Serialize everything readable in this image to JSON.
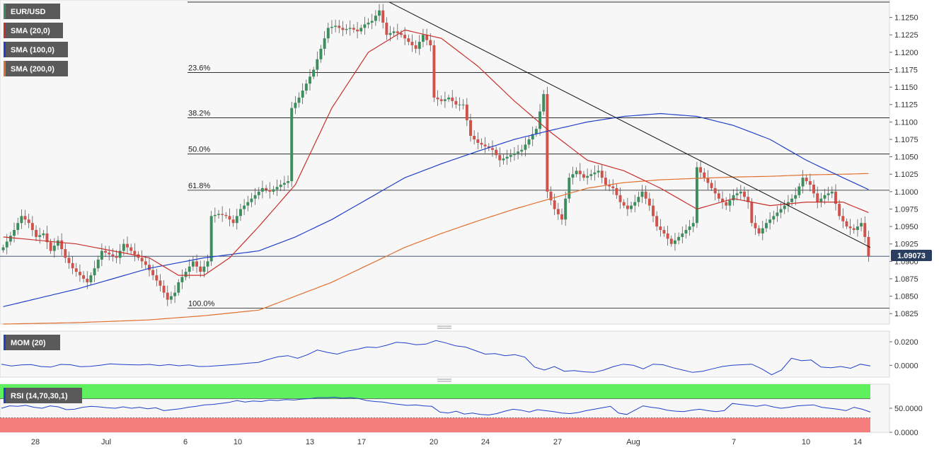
{
  "colors": {
    "up": "#3a8f5c",
    "down": "#d0524a",
    "sma20": "#c8302b",
    "sma100": "#2040c8",
    "sma200": "#e07030",
    "momentum": "#2040c8",
    "rsi": "#2040c8",
    "rsi_overbought": "#5ef05e",
    "rsi_oversold": "#f47d7d",
    "current_price": "#2a3f60"
  },
  "main_legend": [
    {
      "label": "EUR/USD",
      "color": "#3a8f5c"
    },
    {
      "label": "SMA (20,0)",
      "color": "#c8302b"
    },
    {
      "label": "SMA (100,0)",
      "color": "#2040c8"
    },
    {
      "label": "SMA (200,0)",
      "color": "#e07030"
    }
  ],
  "current_price_label": "1.09073",
  "chart_data": [
    {
      "type": "candlestick",
      "title": "EUR/USD",
      "ylim": [
        1.081,
        1.1275
      ],
      "y_ticks": [
        "1.0825",
        "1.0850",
        "1.0875",
        "1.0900",
        "1.0925",
        "1.0950",
        "1.0975",
        "1.1000",
        "1.1025",
        "1.1050",
        "1.1075",
        "1.1100",
        "1.1125",
        "1.1150",
        "1.1175",
        "1.1200",
        "1.1225",
        "1.1250"
      ],
      "x_ticks": [
        "28",
        "Jul",
        "6",
        "10",
        "13",
        "17",
        "20",
        "24",
        "27",
        "Aug",
        "7",
        "10",
        "14"
      ],
      "current_price": 1.09073,
      "fibonacci": [
        {
          "label": "23.6%",
          "value": 1.1171
        },
        {
          "label": "38.2%",
          "value": 1.1106
        },
        {
          "label": "50.0%",
          "value": 1.1054
        },
        {
          "label": "61.8%",
          "value": 1.1002
        },
        {
          "label": "100.0%",
          "value": 1.0833
        }
      ],
      "high_line": 1.1272,
      "trendline": [
        1.1272,
        1.092
      ],
      "close_anchors": [
        [
          0,
          1.092
        ],
        [
          3,
          1.0945
        ],
        [
          5,
          1.0965
        ],
        [
          7,
          1.0955
        ],
        [
          9,
          1.0935
        ],
        [
          11,
          1.094
        ],
        [
          13,
          1.0915
        ],
        [
          15,
          1.093
        ],
        [
          17,
          1.0905
        ],
        [
          19,
          1.089
        ],
        [
          21,
          1.088
        ],
        [
          23,
          1.087
        ],
        [
          25,
          1.089
        ],
        [
          27,
          1.0915
        ],
        [
          29,
          1.091
        ],
        [
          31,
          1.0905
        ],
        [
          33,
          1.0925
        ],
        [
          35,
          1.0915
        ],
        [
          37,
          1.0905
        ],
        [
          39,
          1.0895
        ],
        [
          41,
          1.088
        ],
        [
          43,
          1.0865
        ],
        [
          45,
          1.0845
        ],
        [
          47,
          1.0855
        ],
        [
          48,
          1.087
        ],
        [
          50,
          1.0885
        ],
        [
          52,
          1.09
        ],
        [
          54,
          1.0885
        ],
        [
          56,
          1.09
        ],
        [
          57,
          1.0965
        ],
        [
          59,
          1.0968
        ],
        [
          61,
          1.0965
        ],
        [
          63,
          1.0955
        ],
        [
          65,
          1.0975
        ],
        [
          67,
          1.0985
        ],
        [
          69,
          1.0995
        ],
        [
          71,
          1.1005
        ],
        [
          73,
          1.1
        ],
        [
          76,
          1.101
        ],
        [
          78,
          1.1015
        ],
        [
          79,
          1.112
        ],
        [
          81,
          1.1135
        ],
        [
          83,
          1.1155
        ],
        [
          85,
          1.1175
        ],
        [
          87,
          1.1205
        ],
        [
          89,
          1.1235
        ],
        [
          91,
          1.1238
        ],
        [
          93,
          1.1232
        ],
        [
          95,
          1.1235
        ],
        [
          97,
          1.123
        ],
        [
          99,
          1.124
        ],
        [
          101,
          1.1245
        ],
        [
          103,
          1.126
        ],
        [
          105,
          1.1225
        ],
        [
          107,
          1.123
        ],
        [
          109,
          1.1225
        ],
        [
          111,
          1.1215
        ],
        [
          113,
          1.1205
        ],
        [
          115,
          1.1225
        ],
        [
          117,
          1.121
        ],
        [
          118,
          1.1135
        ],
        [
          120,
          1.113
        ],
        [
          122,
          1.1135
        ],
        [
          124,
          1.1125
        ],
        [
          126,
          1.1125
        ],
        [
          128,
          1.108
        ],
        [
          130,
          1.107
        ],
        [
          132,
          1.1065
        ],
        [
          134,
          1.106
        ],
        [
          136,
          1.1045
        ],
        [
          138,
          1.105
        ],
        [
          140,
          1.1055
        ],
        [
          142,
          1.106
        ],
        [
          144,
          1.1075
        ],
        [
          146,
          1.109
        ],
        [
          148,
          1.114
        ],
        [
          149,
          1.1
        ],
        [
          151,
          1.0975
        ],
        [
          153,
          1.096
        ],
        [
          155,
          1.102
        ],
        [
          157,
          1.103
        ],
        [
          159,
          1.102
        ],
        [
          161,
          1.1025
        ],
        [
          163,
          1.103
        ],
        [
          165,
          1.101
        ],
        [
          167,
          1.1005
        ],
        [
          169,
          1.0985
        ],
        [
          171,
          1.0975
        ],
        [
          173,
          1.0985
        ],
        [
          175,
          1.1
        ],
        [
          177,
          1.098
        ],
        [
          179,
          1.095
        ],
        [
          181,
          1.094
        ],
        [
          183,
          1.0925
        ],
        [
          185,
          1.0935
        ],
        [
          187,
          1.0945
        ],
        [
          189,
          1.0955
        ],
        [
          190,
          1.1035
        ],
        [
          192,
          1.102
        ],
        [
          194,
          1.1005
        ],
        [
          196,
          1.099
        ],
        [
          198,
          1.098
        ],
        [
          200,
          1.0995
        ],
        [
          202,
          1.1
        ],
        [
          204,
          1.0985
        ],
        [
          205,
          1.0955
        ],
        [
          207,
          1.094
        ],
        [
          209,
          1.0955
        ],
        [
          211,
          1.0965
        ],
        [
          213,
          1.0975
        ],
        [
          215,
          1.0985
        ],
        [
          217,
          1.0995
        ],
        [
          219,
          1.102
        ],
        [
          221,
          1.101
        ],
        [
          223,
          1.0985
        ],
        [
          225,
          1.0995
        ],
        [
          227,
          1.1
        ],
        [
          229,
          1.0965
        ],
        [
          231,
          1.095
        ],
        [
          233,
          1.0945
        ],
        [
          235,
          1.0955
        ],
        [
          236,
          1.0935
        ],
        [
          237,
          1.09073
        ]
      ],
      "sma20_anchors": [
        [
          0,
          1.0935
        ],
        [
          20,
          1.0925
        ],
        [
          40,
          1.0905
        ],
        [
          48,
          1.088
        ],
        [
          55,
          1.088
        ],
        [
          62,
          1.0905
        ],
        [
          70,
          1.095
        ],
        [
          80,
          1.101
        ],
        [
          90,
          1.112
        ],
        [
          100,
          1.12
        ],
        [
          110,
          1.1232
        ],
        [
          120,
          1.122
        ],
        [
          130,
          1.118
        ],
        [
          140,
          1.113
        ],
        [
          150,
          1.1085
        ],
        [
          160,
          1.1045
        ],
        [
          170,
          1.103
        ],
        [
          180,
          1.1005
        ],
        [
          190,
          1.0975
        ],
        [
          200,
          1.099
        ],
        [
          210,
          1.098
        ],
        [
          220,
          1.0985
        ],
        [
          230,
          1.0985
        ],
        [
          237,
          1.097
        ]
      ],
      "sma100_anchors": [
        [
          0,
          1.0835
        ],
        [
          20,
          1.086
        ],
        [
          40,
          1.089
        ],
        [
          55,
          1.0905
        ],
        [
          70,
          1.0915
        ],
        [
          80,
          1.0935
        ],
        [
          90,
          1.096
        ],
        [
          100,
          1.099
        ],
        [
          110,
          1.102
        ],
        [
          120,
          1.104
        ],
        [
          130,
          1.1058
        ],
        [
          140,
          1.1075
        ],
        [
          150,
          1.1088
        ],
        [
          160,
          1.11
        ],
        [
          170,
          1.1108
        ],
        [
          180,
          1.1112
        ],
        [
          190,
          1.1108
        ],
        [
          200,
          1.1095
        ],
        [
          210,
          1.1075
        ],
        [
          220,
          1.1045
        ],
        [
          230,
          1.102
        ],
        [
          237,
          1.1003
        ]
      ],
      "sma200_anchors": [
        [
          0,
          1.081
        ],
        [
          20,
          1.0812
        ],
        [
          40,
          1.0816
        ],
        [
          55,
          1.0822
        ],
        [
          70,
          1.083
        ],
        [
          80,
          1.085
        ],
        [
          90,
          1.087
        ],
        [
          100,
          1.0895
        ],
        [
          110,
          1.092
        ],
        [
          120,
          1.094
        ],
        [
          130,
          1.0958
        ],
        [
          140,
          1.0975
        ],
        [
          150,
          1.099
        ],
        [
          160,
          1.1005
        ],
        [
          170,
          1.1013
        ],
        [
          180,
          1.1017
        ],
        [
          190,
          1.1019
        ],
        [
          200,
          1.1021
        ],
        [
          210,
          1.1022
        ],
        [
          220,
          1.1024
        ],
        [
          230,
          1.1025
        ],
        [
          237,
          1.1026
        ]
      ]
    },
    {
      "type": "line",
      "title": "MOM (20)",
      "ylim": [
        -0.01,
        0.029
      ],
      "y_ticks": [
        "0.0200",
        "0.0000"
      ],
      "series": [
        {
          "name": "MOM (20)",
          "values": [
            0.001,
            -0.0005,
            0.0003,
            0.0006,
            -0.001,
            -0.0015,
            0.0008,
            0.0005,
            -0.0012,
            -0.0008,
            0.0,
            0.0012,
            0.0008,
            0.0005,
            0.0004,
            0.0008,
            -0.0002,
            0.0006,
            -0.0004,
            0.0003,
            -0.001,
            -0.0008,
            -0.0002,
            0.0004,
            0.001,
            0.0018,
            0.0025,
            0.005,
            0.0072,
            0.0082,
            0.006,
            0.009,
            0.013,
            0.011,
            0.0095,
            0.012,
            0.0135,
            0.0155,
            0.015,
            0.017,
            0.0195,
            0.019,
            0.0175,
            0.018,
            0.021,
            0.019,
            0.0165,
            0.0155,
            0.0125,
            0.0095,
            0.01,
            0.0082,
            0.009,
            0.007,
            -0.0015,
            -0.004,
            -0.001,
            -0.005,
            -0.0045,
            -0.0055,
            -0.006,
            -0.004,
            -0.001,
            0.001,
            0.0,
            -0.003,
            0.001,
            0.0005,
            -0.002,
            -0.004,
            -0.006,
            -0.005,
            -0.003,
            -0.001,
            0.0,
            0.0005,
            0.001,
            -0.003,
            -0.008,
            -0.004,
            0.006,
            0.004,
            0.0045,
            -0.0015,
            -0.002,
            -0.001,
            -0.0025,
            0.001,
            -0.0005
          ]
        }
      ]
    },
    {
      "type": "line",
      "title": "RSI (14,70,30,1)",
      "ylim": [
        0,
        100
      ],
      "y_ticks": [
        "50.0000",
        "0.0000"
      ],
      "thresholds": {
        "overbought": 70,
        "oversold": 30
      },
      "series": [
        {
          "name": "RSI (14,70,30,1)",
          "values": [
            50,
            55,
            54,
            56,
            52,
            50,
            55,
            53,
            47,
            48,
            52,
            54,
            53,
            51,
            50,
            53,
            50,
            52,
            49,
            51,
            45,
            47,
            49,
            52,
            54,
            57,
            58,
            60,
            62,
            66,
            63,
            65,
            64,
            67,
            66,
            68,
            67,
            69,
            70,
            72,
            72,
            73,
            71,
            72,
            70,
            66,
            64,
            63,
            60,
            58,
            56,
            57,
            55,
            54,
            42,
            40,
            44,
            38,
            40,
            37,
            36,
            39,
            44,
            48,
            46,
            42,
            47,
            45,
            43,
            40,
            39,
            41,
            45,
            48,
            51,
            54,
            40,
            37,
            46,
            55,
            52,
            50,
            46,
            44,
            43,
            46,
            48,
            45,
            43,
            45,
            60,
            58,
            56,
            54,
            57,
            53,
            50,
            52,
            55,
            56,
            57,
            52,
            50,
            48,
            45,
            52,
            48,
            42
          ]
        }
      ]
    }
  ]
}
